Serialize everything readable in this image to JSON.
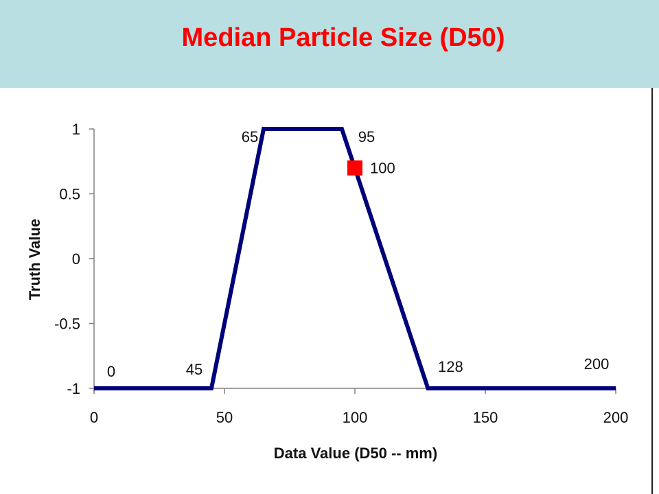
{
  "slide": {
    "title": "Median Particle Size (D50)"
  },
  "colors": {
    "header_background": "#b9dfe3",
    "title": "#ff0000",
    "series_line": "#00007a",
    "marker": "#ff0000"
  },
  "chart_data": {
    "type": "line",
    "title": "",
    "xlabel": "Data Value (D50 -- mm)",
    "ylabel": "Truth Value",
    "xlim": [
      0,
      200
    ],
    "ylim": [
      -1,
      1
    ],
    "x_ticks": [
      0,
      50,
      100,
      150,
      200
    ],
    "y_ticks": [
      1,
      0.5,
      0,
      -0.5,
      -1
    ],
    "x_tick_labels": [
      "0",
      "50",
      "100",
      "150",
      "200"
    ],
    "y_tick_labels": [
      "1",
      "0.5",
      "0",
      "-0.5",
      "-1"
    ],
    "grid": false,
    "series": [
      {
        "x": [
          0,
          45,
          65,
          95,
          128,
          200
        ],
        "y": [
          -1,
          -1,
          1,
          1,
          -1,
          -1
        ],
        "point_labels": [
          "0",
          "45",
          "65",
          "95",
          "128",
          "200"
        ]
      }
    ],
    "marker_point": {
      "x": 100,
      "y": 0.7,
      "label": "100"
    }
  }
}
